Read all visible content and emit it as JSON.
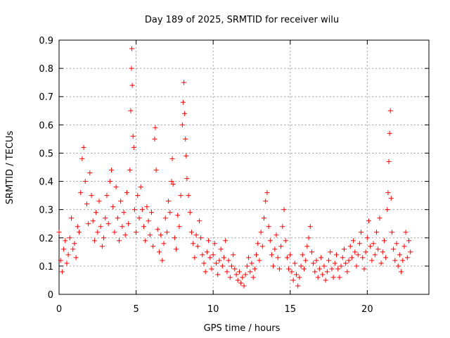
{
  "chart_data": {
    "type": "scatter",
    "title": "Day 189 of 2025, SRMTID for receiver wilu",
    "xlabel": "GPS time / hours",
    "ylabel": "SRMTID / TECUs",
    "xlim": [
      0,
      24
    ],
    "ylim": [
      0,
      0.9
    ],
    "xticks": [
      0,
      5,
      10,
      15,
      20
    ],
    "yticks": [
      0,
      0.1,
      0.2,
      0.3,
      0.4,
      0.5,
      0.6,
      0.7,
      0.8,
      0.9
    ],
    "xtick_labels": [
      "0",
      "5",
      "10",
      "15",
      "20"
    ],
    "ytick_labels": [
      "0",
      "0.1",
      "0.2",
      "0.3",
      "0.4",
      "0.5",
      "0.6",
      "0.7",
      "0.8",
      "0.9"
    ],
    "grid": true,
    "marker": "+",
    "color": "#ff0000",
    "series": [
      {
        "name": "SRMTID",
        "points": [
          [
            0.0,
            0.22
          ],
          [
            0.1,
            0.12
          ],
          [
            0.2,
            0.08
          ],
          [
            0.3,
            0.16
          ],
          [
            0.4,
            0.19
          ],
          [
            0.5,
            0.11
          ],
          [
            0.6,
            0.14
          ],
          [
            0.7,
            0.2
          ],
          [
            0.8,
            0.27
          ],
          [
            0.9,
            0.16
          ],
          [
            1.0,
            0.18
          ],
          [
            1.1,
            0.13
          ],
          [
            1.2,
            0.24
          ],
          [
            1.3,
            0.22
          ],
          [
            1.4,
            0.36
          ],
          [
            1.5,
            0.48
          ],
          [
            1.6,
            0.52
          ],
          [
            1.7,
            0.4
          ],
          [
            1.8,
            0.32
          ],
          [
            1.9,
            0.25
          ],
          [
            2.0,
            0.43
          ],
          [
            2.1,
            0.35
          ],
          [
            2.2,
            0.26
          ],
          [
            2.3,
            0.19
          ],
          [
            2.4,
            0.29
          ],
          [
            2.5,
            0.22
          ],
          [
            2.6,
            0.33
          ],
          [
            2.7,
            0.24
          ],
          [
            2.8,
            0.17
          ],
          [
            2.9,
            0.2
          ],
          [
            3.0,
            0.27
          ],
          [
            3.1,
            0.35
          ],
          [
            3.2,
            0.25
          ],
          [
            3.3,
            0.4
          ],
          [
            3.4,
            0.44
          ],
          [
            3.5,
            0.31
          ],
          [
            3.6,
            0.22
          ],
          [
            3.7,
            0.38
          ],
          [
            3.8,
            0.27
          ],
          [
            3.9,
            0.19
          ],
          [
            4.0,
            0.33
          ],
          [
            4.1,
            0.24
          ],
          [
            4.2,
            0.29
          ],
          [
            4.3,
            0.21
          ],
          [
            4.4,
            0.36
          ],
          [
            4.5,
            0.25
          ],
          [
            4.6,
            0.44
          ],
          [
            4.65,
            0.65
          ],
          [
            4.7,
            0.8
          ],
          [
            4.72,
            0.87
          ],
          [
            4.75,
            0.74
          ],
          [
            4.8,
            0.56
          ],
          [
            4.85,
            0.52
          ],
          [
            4.9,
            0.3
          ],
          [
            5.0,
            0.22
          ],
          [
            5.1,
            0.35
          ],
          [
            5.2,
            0.27
          ],
          [
            5.3,
            0.38
          ],
          [
            5.4,
            0.3
          ],
          [
            5.5,
            0.24
          ],
          [
            5.6,
            0.19
          ],
          [
            5.7,
            0.31
          ],
          [
            5.8,
            0.26
          ],
          [
            5.9,
            0.21
          ],
          [
            6.0,
            0.29
          ],
          [
            6.1,
            0.17
          ],
          [
            6.2,
            0.55
          ],
          [
            6.25,
            0.59
          ],
          [
            6.3,
            0.44
          ],
          [
            6.4,
            0.23
          ],
          [
            6.5,
            0.15
          ],
          [
            6.6,
            0.21
          ],
          [
            6.7,
            0.12
          ],
          [
            6.8,
            0.18
          ],
          [
            6.9,
            0.27
          ],
          [
            7.0,
            0.22
          ],
          [
            7.1,
            0.33
          ],
          [
            7.2,
            0.29
          ],
          [
            7.3,
            0.4
          ],
          [
            7.35,
            0.48
          ],
          [
            7.4,
            0.39
          ],
          [
            7.5,
            0.2
          ],
          [
            7.6,
            0.16
          ],
          [
            7.7,
            0.28
          ],
          [
            7.8,
            0.24
          ],
          [
            7.9,
            0.35
          ],
          [
            8.0,
            0.6
          ],
          [
            8.05,
            0.68
          ],
          [
            8.1,
            0.75
          ],
          [
            8.15,
            0.64
          ],
          [
            8.2,
            0.55
          ],
          [
            8.25,
            0.49
          ],
          [
            8.3,
            0.41
          ],
          [
            8.4,
            0.35
          ],
          [
            8.5,
            0.29
          ],
          [
            8.6,
            0.22
          ],
          [
            8.7,
            0.18
          ],
          [
            8.8,
            0.13
          ],
          [
            8.9,
            0.21
          ],
          [
            9.0,
            0.17
          ],
          [
            9.1,
            0.26
          ],
          [
            9.2,
            0.2
          ],
          [
            9.3,
            0.14
          ],
          [
            9.4,
            0.11
          ],
          [
            9.5,
            0.08
          ],
          [
            9.6,
            0.15
          ],
          [
            9.7,
            0.19
          ],
          [
            9.8,
            0.13
          ],
          [
            9.9,
            0.09
          ],
          [
            10.0,
            0.14
          ],
          [
            10.1,
            0.18
          ],
          [
            10.2,
            0.11
          ],
          [
            10.3,
            0.07
          ],
          [
            10.4,
            0.12
          ],
          [
            10.5,
            0.16
          ],
          [
            10.6,
            0.1
          ],
          [
            10.7,
            0.13
          ],
          [
            10.8,
            0.19
          ],
          [
            10.9,
            0.08
          ],
          [
            11.0,
            0.12
          ],
          [
            11.1,
            0.06
          ],
          [
            11.2,
            0.1
          ],
          [
            11.3,
            0.14
          ],
          [
            11.4,
            0.09
          ],
          [
            11.5,
            0.07
          ],
          [
            11.6,
            0.05
          ],
          [
            11.7,
            0.08
          ],
          [
            11.8,
            0.04
          ],
          [
            11.9,
            0.06
          ],
          [
            12.0,
            0.03
          ],
          [
            12.1,
            0.07
          ],
          [
            12.2,
            0.1
          ],
          [
            12.3,
            0.13
          ],
          [
            12.4,
            0.08
          ],
          [
            12.5,
            0.11
          ],
          [
            12.6,
            0.06
          ],
          [
            12.7,
            0.09
          ],
          [
            12.8,
            0.14
          ],
          [
            12.9,
            0.18
          ],
          [
            13.0,
            0.12
          ],
          [
            13.1,
            0.22
          ],
          [
            13.2,
            0.17
          ],
          [
            13.3,
            0.27
          ],
          [
            13.4,
            0.33
          ],
          [
            13.5,
            0.36
          ],
          [
            13.6,
            0.24
          ],
          [
            13.7,
            0.19
          ],
          [
            13.8,
            0.14
          ],
          [
            13.9,
            0.1
          ],
          [
            14.0,
            0.16
          ],
          [
            14.1,
            0.21
          ],
          [
            14.2,
            0.13
          ],
          [
            14.3,
            0.09
          ],
          [
            14.4,
            0.17
          ],
          [
            14.5,
            0.24
          ],
          [
            14.6,
            0.3
          ],
          [
            14.7,
            0.19
          ],
          [
            14.8,
            0.13
          ],
          [
            14.9,
            0.09
          ],
          [
            15.0,
            0.14
          ],
          [
            15.1,
            0.08
          ],
          [
            15.2,
            0.05
          ],
          [
            15.3,
            0.11
          ],
          [
            15.4,
            0.07
          ],
          [
            15.5,
            0.03
          ],
          [
            15.6,
            0.06
          ],
          [
            15.7,
            0.1
          ],
          [
            15.8,
            0.14
          ],
          [
            15.9,
            0.09
          ],
          [
            16.0,
            0.12
          ],
          [
            16.1,
            0.17
          ],
          [
            16.2,
            0.2
          ],
          [
            16.3,
            0.24
          ],
          [
            16.4,
            0.15
          ],
          [
            16.5,
            0.11
          ],
          [
            16.6,
            0.08
          ],
          [
            16.7,
            0.12
          ],
          [
            16.8,
            0.06
          ],
          [
            16.9,
            0.09
          ],
          [
            17.0,
            0.13
          ],
          [
            17.1,
            0.07
          ],
          [
            17.2,
            0.1
          ],
          [
            17.3,
            0.05
          ],
          [
            17.4,
            0.08
          ],
          [
            17.5,
            0.12
          ],
          [
            17.6,
            0.15
          ],
          [
            17.7,
            0.09
          ],
          [
            17.8,
            0.06
          ],
          [
            17.9,
            0.11
          ],
          [
            18.0,
            0.14
          ],
          [
            18.1,
            0.09
          ],
          [
            18.2,
            0.06
          ],
          [
            18.3,
            0.1
          ],
          [
            18.4,
            0.13
          ],
          [
            18.5,
            0.16
          ],
          [
            18.6,
            0.11
          ],
          [
            18.7,
            0.08
          ],
          [
            18.8,
            0.12
          ],
          [
            18.9,
            0.17
          ],
          [
            19.0,
            0.13
          ],
          [
            19.1,
            0.19
          ],
          [
            19.2,
            0.15
          ],
          [
            19.3,
            0.1
          ],
          [
            19.4,
            0.14
          ],
          [
            19.5,
            0.18
          ],
          [
            19.6,
            0.22
          ],
          [
            19.7,
            0.13
          ],
          [
            19.8,
            0.09
          ],
          [
            19.9,
            0.15
          ],
          [
            20.0,
            0.2
          ],
          [
            20.1,
            0.26
          ],
          [
            20.2,
            0.17
          ],
          [
            20.3,
            0.12
          ],
          [
            20.4,
            0.18
          ],
          [
            20.5,
            0.14
          ],
          [
            20.6,
            0.22
          ],
          [
            20.7,
            0.16
          ],
          [
            20.8,
            0.27
          ],
          [
            20.9,
            0.11
          ],
          [
            21.0,
            0.15
          ],
          [
            21.1,
            0.19
          ],
          [
            21.2,
            0.13
          ],
          [
            21.3,
            0.3
          ],
          [
            21.35,
            0.36
          ],
          [
            21.4,
            0.47
          ],
          [
            21.45,
            0.57
          ],
          [
            21.5,
            0.65
          ],
          [
            21.55,
            0.34
          ],
          [
            21.6,
            0.22
          ],
          [
            21.7,
            0.16
          ],
          [
            21.8,
            0.12
          ],
          [
            21.9,
            0.18
          ],
          [
            22.0,
            0.1
          ],
          [
            22.1,
            0.14
          ],
          [
            22.2,
            0.08
          ],
          [
            22.3,
            0.12
          ],
          [
            22.4,
            0.17
          ],
          [
            22.5,
            0.22
          ],
          [
            22.6,
            0.13
          ],
          [
            22.7,
            0.19
          ],
          [
            22.8,
            0.15
          ]
        ]
      }
    ]
  }
}
